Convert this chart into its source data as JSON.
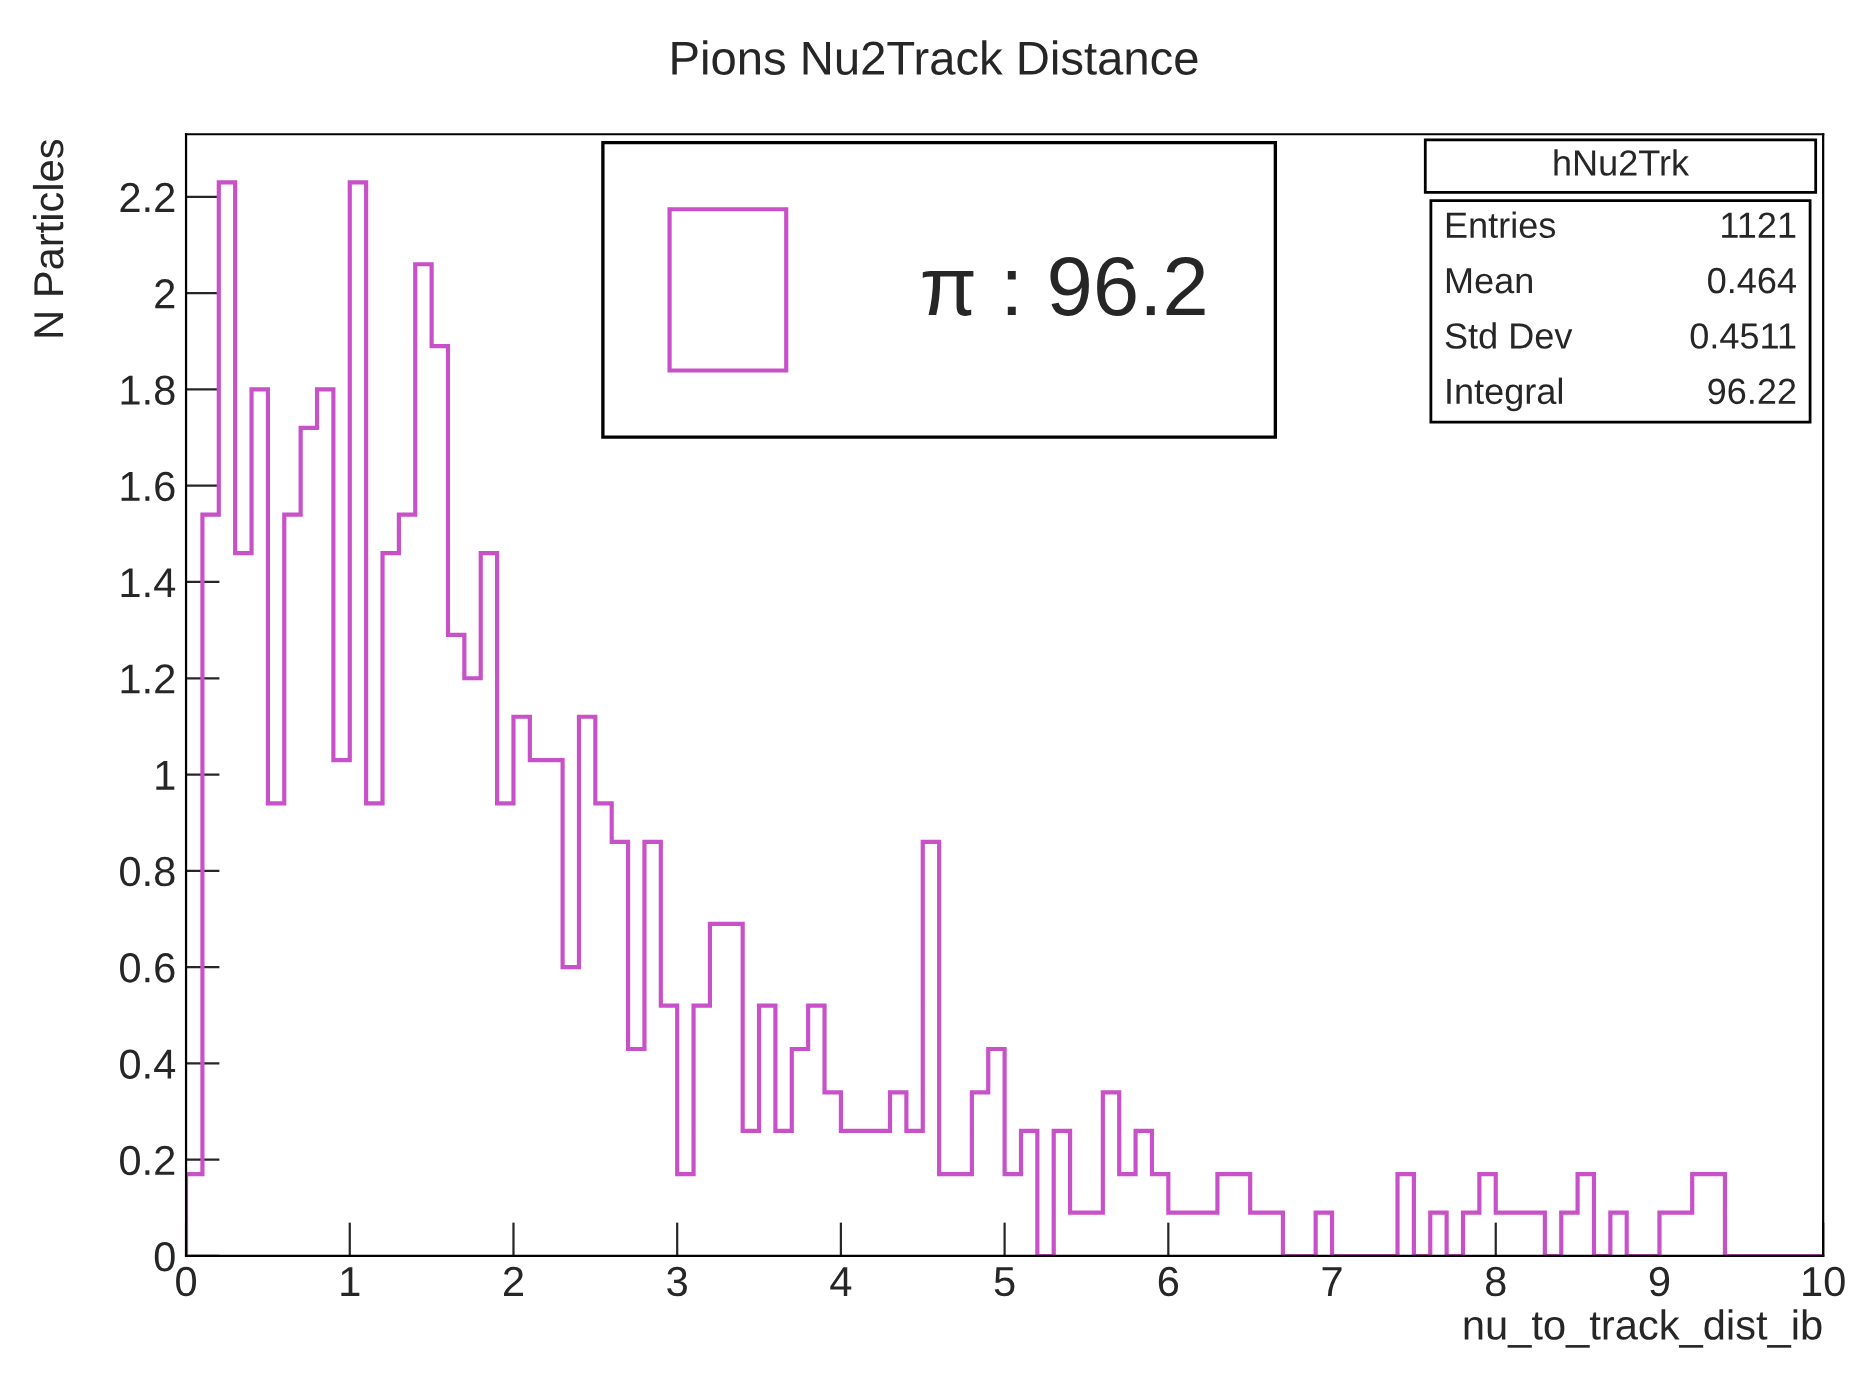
{
  "chart_data": {
    "type": "histogram",
    "title": "Pions Nu2Track Distance",
    "xlabel": "nu_to_track_dist_ib",
    "ylabel": "N Particles",
    "bins": [
      0,
      0.1,
      0.2,
      0.3,
      0.4,
      0.5,
      0.6,
      0.7,
      0.8,
      0.9,
      1,
      1.1,
      1.2,
      1.3,
      1.4,
      1.5,
      1.6,
      1.7,
      1.8,
      1.9,
      2,
      2.1,
      2.2,
      2.3,
      2.4,
      2.5,
      2.6,
      2.7,
      2.8,
      2.9,
      3,
      3.1,
      3.2,
      3.3,
      3.4,
      3.5,
      3.6,
      3.7,
      3.8,
      3.9,
      4,
      4.1,
      4.2,
      4.3,
      4.4,
      4.5,
      4.6,
      4.7,
      4.8,
      4.9,
      5,
      5.1,
      5.2,
      5.3,
      5.4,
      5.5,
      5.6,
      5.7,
      5.8,
      5.9,
      6,
      6.1,
      6.2,
      6.3,
      6.4,
      6.5,
      6.6,
      6.7,
      6.8,
      6.9,
      7,
      7.1,
      7.2,
      7.3,
      7.4,
      7.5,
      7.6,
      7.7,
      7.8,
      7.9,
      8,
      8.1,
      8.2,
      8.3,
      8.4,
      8.5,
      8.6,
      8.7,
      8.8,
      8.9,
      9,
      9.1,
      9.2,
      9.3,
      9.4,
      9.5,
      9.6,
      9.7,
      9.8,
      9.9,
      10
    ],
    "series": [
      {
        "name": "π : 96.2",
        "color": "#c850c8",
        "values": [
          0.17,
          1.54,
          2.23,
          1.46,
          1.8,
          0.94,
          1.54,
          1.72,
          1.8,
          1.03,
          2.23,
          0.94,
          1.46,
          1.54,
          2.06,
          1.89,
          1.29,
          1.2,
          1.46,
          0.94,
          1.12,
          1.03,
          1.03,
          0.6,
          1.12,
          0.94,
          0.86,
          0.43,
          0.86,
          0.52,
          0.17,
          0.52,
          0.69,
          0.69,
          0.26,
          0.52,
          0.26,
          0.43,
          0.52,
          0.34,
          0.26,
          0.26,
          0.26,
          0.34,
          0.26,
          0.86,
          0.17,
          0.17,
          0.34,
          0.43,
          0.17,
          0.26,
          0,
          0.26,
          0.09,
          0.09,
          0.34,
          0.17,
          0.26,
          0.17,
          0.09,
          0.09,
          0.09,
          0.17,
          0.17,
          0.09,
          0.09,
          0,
          0,
          0.09,
          0,
          0,
          0,
          0,
          0.17,
          0,
          0.09,
          0,
          0.09,
          0.17,
          0.09,
          0.09,
          0.09,
          0,
          0.09,
          0.17,
          0,
          0.09,
          0,
          0,
          0.09,
          0.09,
          0.17,
          0.17,
          0,
          0,
          0,
          0,
          0,
          0
        ]
      }
    ],
    "xlim": [
      0,
      10
    ],
    "xticks": [
      0,
      1,
      2,
      3,
      4,
      5,
      6,
      7,
      8,
      9,
      10
    ],
    "ylim": [
      0,
      2.33
    ],
    "yticks": [
      0,
      0.2,
      0.4,
      0.6,
      0.8,
      1,
      1.2,
      1.4,
      1.6,
      1.8,
      2,
      2.2
    ],
    "grid": false,
    "legend": "top",
    "annotations": [
      "hNu2Trk",
      "Entries 1121",
      "Mean 0.464",
      "Std Dev 0.4511",
      "Integral 96.22"
    ]
  }
}
